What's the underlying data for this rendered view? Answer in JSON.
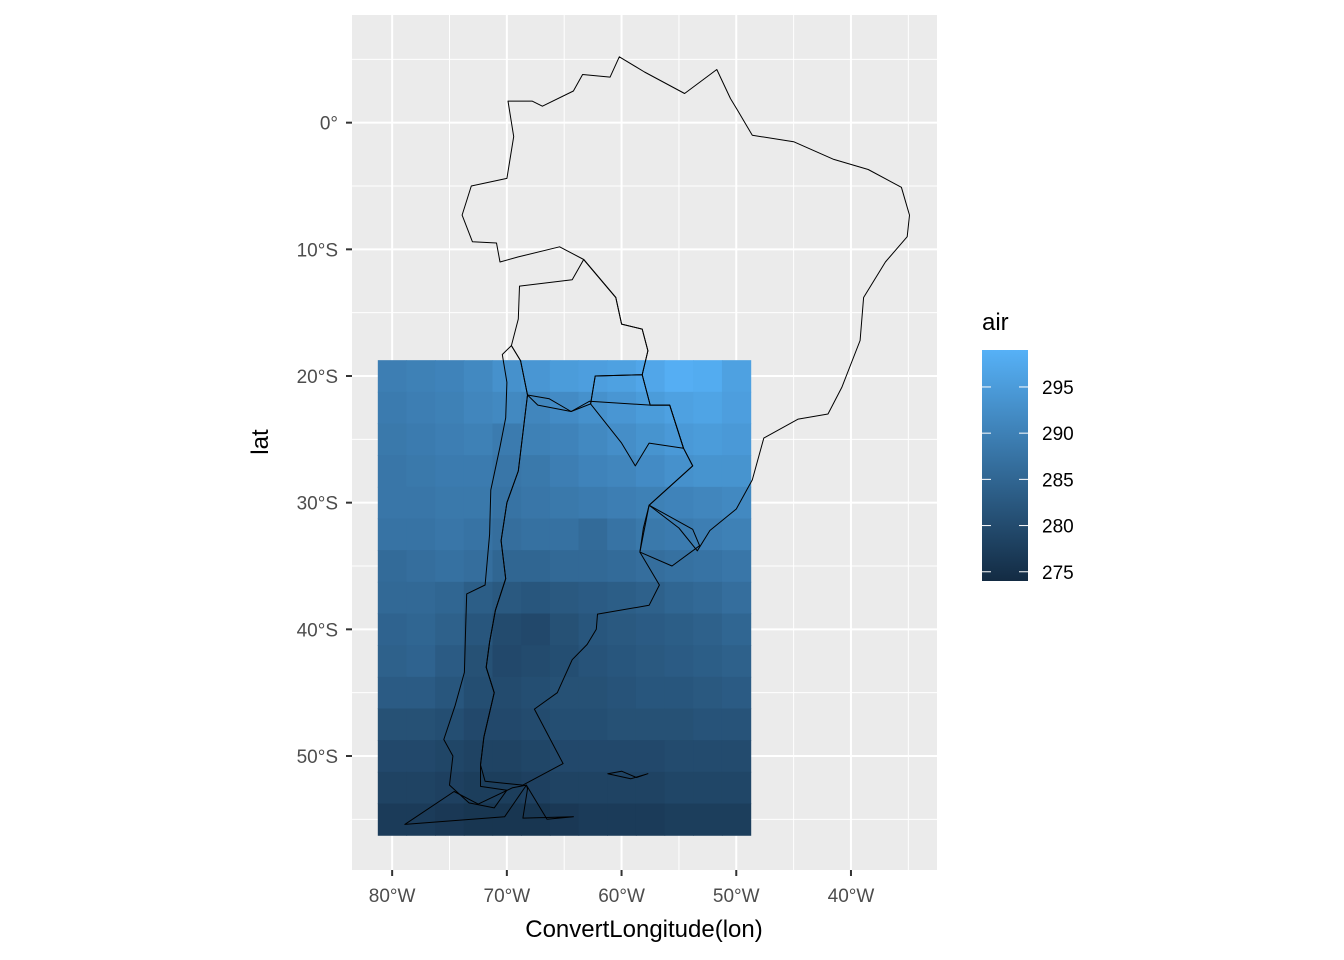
{
  "chart_data": {
    "type": "heatmap",
    "title": "",
    "xlabel": "ConvertLongitude(lon)",
    "ylabel": "lat",
    "xlim": [
      -83.5,
      -32.5
    ],
    "ylim": [
      -59,
      8.5
    ],
    "x_ticks": [
      {
        "value": -80,
        "label": "80°W"
      },
      {
        "value": -70,
        "label": "70°W"
      },
      {
        "value": -60,
        "label": "60°W"
      },
      {
        "value": -50,
        "label": "50°W"
      },
      {
        "value": -40,
        "label": "40°W"
      }
    ],
    "y_ticks": [
      {
        "value": 0,
        "label": "0°"
      },
      {
        "value": -10,
        "label": "10°S"
      },
      {
        "value": -20,
        "label": "20°S"
      },
      {
        "value": -30,
        "label": "30°S"
      },
      {
        "value": -40,
        "label": "40°S"
      },
      {
        "value": -50,
        "label": "50°S"
      }
    ],
    "grid": true,
    "panel_background": "#ebebeb",
    "grid_color": "#ffffff",
    "outline_color": "#000000",
    "heatmap": {
      "lon_range": [
        -81.25,
        -48.75
      ],
      "lat_range": [
        -56.25,
        -18.75
      ],
      "cell_size_deg": 2.5,
      "lons": [
        -80,
        -77.5,
        -75,
        -72.5,
        -70,
        -67.5,
        -65,
        -62.5,
        -60,
        -57.5,
        -55,
        -52.5,
        -50
      ],
      "lats": [
        -20,
        -22.5,
        -25,
        -27.5,
        -30,
        -32.5,
        -35,
        -37.5,
        -40,
        -42.5,
        -45,
        -47.5,
        -50,
        -52.5,
        -55
      ],
      "values": [
        [
          289.5,
          290.0,
          290.5,
          291.5,
          293.0,
          294.0,
          295.0,
          295.5,
          296.0,
          297.0,
          298.5,
          298.0,
          296.0
        ],
        [
          289.0,
          289.5,
          290.0,
          291.0,
          291.5,
          291.0,
          292.0,
          293.0,
          294.0,
          295.0,
          296.0,
          296.5,
          295.5
        ],
        [
          288.5,
          289.0,
          289.5,
          290.0,
          289.0,
          290.0,
          290.5,
          291.5,
          292.5,
          293.5,
          294.5,
          295.0,
          294.5
        ],
        [
          288.0,
          288.5,
          289.0,
          289.0,
          288.0,
          288.5,
          289.5,
          290.5,
          291.0,
          292.0,
          293.0,
          293.5,
          293.5
        ],
        [
          288.0,
          288.0,
          288.5,
          288.5,
          287.5,
          288.0,
          288.5,
          289.0,
          289.5,
          290.0,
          290.5,
          291.0,
          291.5
        ],
        [
          287.5,
          287.5,
          288.0,
          287.5,
          286.5,
          287.0,
          287.0,
          286.0,
          287.5,
          288.5,
          289.0,
          289.5,
          290.0
        ],
        [
          286.0,
          286.5,
          287.0,
          286.5,
          285.0,
          285.0,
          285.5,
          285.5,
          286.0,
          286.5,
          287.0,
          287.5,
          288.0
        ],
        [
          285.5,
          285.5,
          285.0,
          283.5,
          282.5,
          282.0,
          282.5,
          283.0,
          283.5,
          284.0,
          285.0,
          285.5,
          286.5
        ],
        [
          284.5,
          285.0,
          284.0,
          282.0,
          280.0,
          279.5,
          281.0,
          282.0,
          282.5,
          283.0,
          283.5,
          284.0,
          285.0
        ],
        [
          284.0,
          284.5,
          283.0,
          281.0,
          279.5,
          280.0,
          280.5,
          281.5,
          282.0,
          282.5,
          283.0,
          283.5,
          284.0
        ],
        [
          283.0,
          283.0,
          282.0,
          280.5,
          280.0,
          280.5,
          281.0,
          281.0,
          281.5,
          282.0,
          282.0,
          282.5,
          283.0
        ],
        [
          281.0,
          281.0,
          280.5,
          279.5,
          279.5,
          280.0,
          280.5,
          280.5,
          281.0,
          281.0,
          281.0,
          281.5,
          281.5
        ],
        [
          279.5,
          279.5,
          279.0,
          278.5,
          278.5,
          279.0,
          279.5,
          279.5,
          279.5,
          279.5,
          280.0,
          280.0,
          280.0
        ],
        [
          278.5,
          278.5,
          278.0,
          277.5,
          277.5,
          278.0,
          278.5,
          278.5,
          278.5,
          278.5,
          279.0,
          279.0,
          279.0
        ],
        [
          277.0,
          277.0,
          276.5,
          276.0,
          276.0,
          276.0,
          276.5,
          277.0,
          277.0,
          277.0,
          277.5,
          277.5,
          277.5
        ]
      ]
    },
    "legend": {
      "title": "air",
      "placement": "right",
      "range": [
        274,
        299
      ],
      "breaks": [
        275,
        280,
        285,
        290,
        295
      ],
      "break_labels": [
        "275",
        "280",
        "285",
        "290",
        "295"
      ],
      "color_low": "#132b43",
      "color_high": "#56b1f7"
    },
    "outlines": [
      {
        "name": "outline-a",
        "points": [
          [
            -78.9,
            -55.4
          ],
          [
            -70.2,
            -54.8
          ],
          [
            -68.3,
            -52.3
          ],
          [
            -69.5,
            -52.5
          ],
          [
            -72.5,
            -53.8
          ],
          [
            -74.6,
            -52.8
          ],
          [
            -78.9,
            -55.4
          ]
        ]
      },
      {
        "name": "outline-b",
        "points": [
          [
            -59.2,
            -51.8
          ],
          [
            -61.2,
            -51.4
          ],
          [
            -60.0,
            -51.2
          ],
          [
            -58.7,
            -51.7
          ],
          [
            -57.7,
            -51.4
          ],
          [
            -59.2,
            -51.8
          ]
        ]
      },
      {
        "name": "outline-c",
        "points": [
          [
            -68.3,
            -52.3
          ],
          [
            -66.5,
            -55.0
          ],
          [
            -64.2,
            -54.8
          ],
          [
            -68.6,
            -54.9
          ],
          [
            -68.2,
            -52.6
          ],
          [
            -68.3,
            -52.3
          ]
        ]
      },
      {
        "name": "outline-d",
        "points": [
          [
            -58.4,
            -33.9
          ],
          [
            -57.6,
            -30.2
          ],
          [
            -53.8,
            -32.1
          ],
          [
            -53.2,
            -33.4
          ],
          [
            -55.6,
            -35.0
          ],
          [
            -58.4,
            -33.9
          ]
        ]
      },
      {
        "name": "outline-e",
        "points": [
          [
            -67.3,
            -22.3
          ],
          [
            -68.2,
            -21.5
          ],
          [
            -68.8,
            -18.8
          ],
          [
            -69.6,
            -17.6
          ],
          [
            -69.0,
            -15.5
          ],
          [
            -68.9,
            -12.9
          ],
          [
            -64.3,
            -12.4
          ],
          [
            -63.3,
            -10.8
          ],
          [
            -60.5,
            -13.8
          ],
          [
            -60.0,
            -15.9
          ],
          [
            -58.2,
            -16.3
          ],
          [
            -57.7,
            -18.0
          ],
          [
            -58.2,
            -19.9
          ],
          [
            -62.3,
            -20.0
          ],
          [
            -62.7,
            -22.2
          ],
          [
            -64.4,
            -22.8
          ],
          [
            -67.3,
            -22.3
          ]
        ]
      },
      {
        "name": "outline-f",
        "points": [
          [
            -58.2,
            -19.9
          ],
          [
            -57.5,
            -22.3
          ],
          [
            -55.8,
            -22.3
          ],
          [
            -54.6,
            -25.7
          ],
          [
            -57.6,
            -25.3
          ],
          [
            -58.8,
            -27.1
          ],
          [
            -60.0,
            -25.3
          ],
          [
            -62.7,
            -22.2
          ],
          [
            -62.3,
            -20.0
          ],
          [
            -58.2,
            -19.9
          ]
        ]
      },
      {
        "name": "outline-g",
        "points": [
          [
            -68.6,
            -52.3
          ],
          [
            -65.1,
            -50.6
          ],
          [
            -67.6,
            -46.3
          ],
          [
            -65.6,
            -45.0
          ],
          [
            -64.3,
            -42.4
          ],
          [
            -63.0,
            -41.2
          ],
          [
            -62.2,
            -40.0
          ],
          [
            -62.1,
            -38.8
          ],
          [
            -57.6,
            -38.1
          ],
          [
            -56.7,
            -36.5
          ],
          [
            -58.4,
            -33.9
          ],
          [
            -58.1,
            -32.0
          ],
          [
            -57.6,
            -30.2
          ],
          [
            -53.8,
            -27.1
          ],
          [
            -54.6,
            -25.7
          ],
          [
            -55.8,
            -22.3
          ],
          [
            -57.5,
            -22.3
          ],
          [
            -62.8,
            -22.0
          ],
          [
            -64.4,
            -22.8
          ],
          [
            -66.3,
            -21.8
          ],
          [
            -68.2,
            -21.5
          ],
          [
            -68.6,
            -24.5
          ],
          [
            -69.0,
            -27.5
          ],
          [
            -70.0,
            -30.0
          ],
          [
            -70.5,
            -33.0
          ],
          [
            -70.1,
            -36.0
          ],
          [
            -71.0,
            -38.5
          ],
          [
            -71.5,
            -41.0
          ],
          [
            -71.8,
            -43.0
          ],
          [
            -71.1,
            -45.0
          ],
          [
            -72.0,
            -48.5
          ],
          [
            -72.3,
            -50.7
          ],
          [
            -71.9,
            -52.0
          ],
          [
            -68.6,
            -52.3
          ]
        ]
      },
      {
        "name": "outline-h",
        "points": [
          [
            -69.6,
            -17.6
          ],
          [
            -70.4,
            -18.3
          ],
          [
            -70.0,
            -20.5
          ],
          [
            -70.1,
            -23.3
          ],
          [
            -70.6,
            -25.6
          ],
          [
            -71.4,
            -29.0
          ],
          [
            -71.5,
            -32.5
          ],
          [
            -71.9,
            -36.5
          ],
          [
            -73.5,
            -37.2
          ],
          [
            -73.6,
            -40.0
          ],
          [
            -73.7,
            -43.4
          ],
          [
            -74.5,
            -46.0
          ],
          [
            -75.5,
            -48.7
          ],
          [
            -74.7,
            -50.0
          ],
          [
            -75.0,
            -52.3
          ],
          [
            -73.3,
            -53.7
          ],
          [
            -71.1,
            -54.1
          ],
          [
            -70.0,
            -52.7
          ],
          [
            -72.3,
            -52.4
          ],
          [
            -72.3,
            -50.7
          ],
          [
            -72.0,
            -48.5
          ],
          [
            -71.1,
            -45.0
          ],
          [
            -71.8,
            -43.0
          ],
          [
            -71.5,
            -41.0
          ],
          [
            -71.0,
            -38.5
          ],
          [
            -70.1,
            -36.0
          ],
          [
            -70.5,
            -33.0
          ],
          [
            -70.0,
            -30.0
          ],
          [
            -69.0,
            -27.5
          ],
          [
            -68.6,
            -24.5
          ],
          [
            -68.2,
            -21.5
          ],
          [
            -68.8,
            -18.8
          ],
          [
            -69.6,
            -17.6
          ]
        ]
      },
      {
        "name": "outline-i",
        "points": [
          [
            -57.6,
            -30.2
          ],
          [
            -53.8,
            -27.1
          ],
          [
            -54.6,
            -25.7
          ],
          [
            -55.8,
            -22.3
          ],
          [
            -57.5,
            -22.3
          ],
          [
            -58.2,
            -19.9
          ],
          [
            -57.7,
            -18.0
          ],
          [
            -58.2,
            -16.3
          ],
          [
            -60.0,
            -15.9
          ],
          [
            -60.5,
            -13.8
          ],
          [
            -63.3,
            -10.8
          ],
          [
            -65.4,
            -9.8
          ],
          [
            -69.0,
            -10.6
          ],
          [
            -70.6,
            -11.0
          ],
          [
            -70.9,
            -9.5
          ],
          [
            -73.0,
            -9.4
          ],
          [
            -73.9,
            -7.3
          ],
          [
            -73.1,
            -5.0
          ],
          [
            -70.0,
            -4.4
          ],
          [
            -69.4,
            -1.1
          ],
          [
            -69.9,
            1.7
          ],
          [
            -67.8,
            1.7
          ],
          [
            -66.9,
            1.3
          ],
          [
            -64.2,
            2.5
          ],
          [
            -63.4,
            3.8
          ],
          [
            -61.0,
            3.6
          ],
          [
            -60.2,
            5.2
          ],
          [
            -58.0,
            4.0
          ],
          [
            -54.5,
            2.3
          ],
          [
            -51.7,
            4.2
          ],
          [
            -50.5,
            1.9
          ],
          [
            -49.9,
            1.0
          ],
          [
            -48.6,
            -1.0
          ],
          [
            -45.0,
            -1.5
          ],
          [
            -41.5,
            -2.9
          ],
          [
            -38.5,
            -3.7
          ],
          [
            -35.6,
            -5.1
          ],
          [
            -34.9,
            -7.3
          ],
          [
            -35.1,
            -9.0
          ],
          [
            -37.0,
            -11.0
          ],
          [
            -38.9,
            -13.8
          ],
          [
            -39.2,
            -17.2
          ],
          [
            -40.8,
            -20.9
          ],
          [
            -42.0,
            -23.0
          ],
          [
            -44.6,
            -23.4
          ],
          [
            -47.6,
            -24.9
          ],
          [
            -48.6,
            -28.2
          ],
          [
            -50.0,
            -30.5
          ],
          [
            -52.3,
            -32.2
          ],
          [
            -53.4,
            -33.8
          ],
          [
            -55.0,
            -32.0
          ],
          [
            -57.6,
            -30.2
          ]
        ]
      }
    ]
  }
}
